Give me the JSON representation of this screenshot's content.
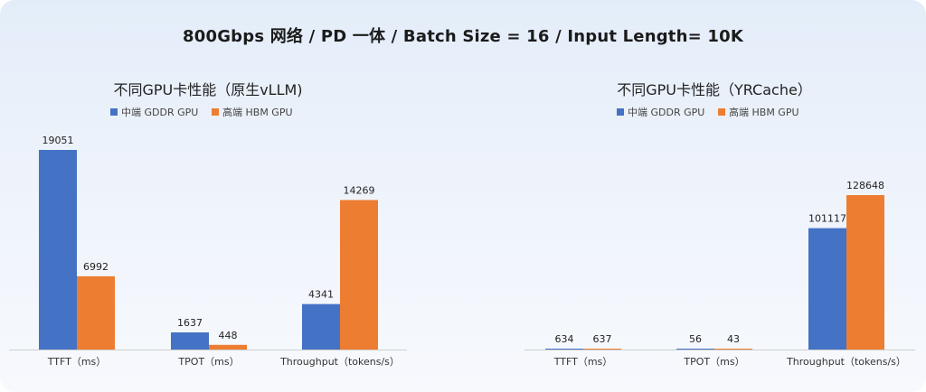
{
  "main_title": "800Gbps 网络 / PD 一体 / Batch Size = 16 / Input Length= 10K",
  "colors": {
    "mid_gpu": "#4472c4",
    "high_gpu": "#ed7d31",
    "axis": "#d0d0d0"
  },
  "chart_data": [
    {
      "type": "bar",
      "title": "不同GPU卡性能（原生vLLM)",
      "categories": [
        "TTFT（ms）",
        "TPOT（ms）",
        "Throughput（tokens/s）"
      ],
      "series": [
        {
          "name": "中端 GDDR GPU",
          "values": [
            19051,
            1637,
            4341
          ]
        },
        {
          "name": "高端 HBM GPU",
          "values": [
            6992,
            448,
            14269
          ]
        }
      ],
      "ylim": [
        0,
        19051
      ],
      "legend": "top-center",
      "grid": false
    },
    {
      "type": "bar",
      "title": "不同GPU卡性能（YRCache）",
      "categories": [
        "TTFT（ms）",
        "TPOT（ms）",
        "Throughput（tokens/s）"
      ],
      "series": [
        {
          "name": "中端 GDDR GPU",
          "values": [
            634,
            56,
            101117
          ]
        },
        {
          "name": "高端 HBM GPU",
          "values": [
            637,
            43,
            128648
          ]
        }
      ],
      "ylim": [
        0,
        128648
      ],
      "legend": "top-center",
      "grid": false
    }
  ]
}
